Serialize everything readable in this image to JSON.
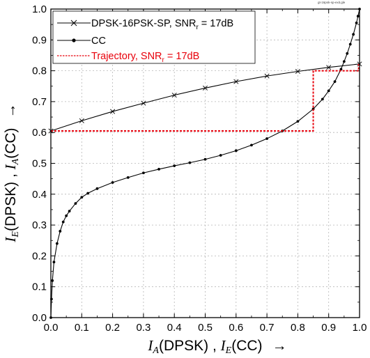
{
  "file_tag": "gt-16psk-sp-exit.gle",
  "chart_data": {
    "type": "line",
    "xlim": [
      0,
      1
    ],
    "ylim": [
      0,
      1
    ],
    "xticks": [
      "0.0",
      "0.1",
      "0.2",
      "0.3",
      "0.4",
      "0.5",
      "0.6",
      "0.7",
      "0.8",
      "0.9",
      "1.0"
    ],
    "yticks": [
      "0.0",
      "0.1",
      "0.2",
      "0.3",
      "0.4",
      "0.5",
      "0.6",
      "0.7",
      "0.8",
      "0.9",
      "1.0"
    ],
    "xlabel": {
      "i": "I",
      "sub1": "A",
      "t1": "(DPSK) ,  ",
      "i2": "I",
      "sub2": "E",
      "t2": "(CC)",
      "arrow": "→"
    },
    "ylabel": {
      "i": "I",
      "sub1": "E",
      "t1": "(DPSK) ,  ",
      "i2": "I",
      "sub2": "A",
      "t2": "(CC)",
      "arrow": "→"
    },
    "legend": {
      "placement": "top-left",
      "entries": [
        {
          "pre": "DPSK-16PSK-SP, SNR",
          "sub": "r",
          "post": " = 17dB",
          "color": "#000000",
          "style": "solid",
          "marker": "x"
        },
        {
          "pre": "CC",
          "sub": "",
          "post": "",
          "color": "#000000",
          "style": "solid",
          "marker": "dot"
        },
        {
          "pre": "Trajectory, SNR",
          "sub": "r",
          "post": " = 17dB",
          "color": "#e8000b",
          "style": "dashed",
          "marker": "none"
        }
      ]
    },
    "series": [
      {
        "name": "DPSK-16PSK-SP, SNR_r = 17dB",
        "x": [
          0.0,
          0.1,
          0.2,
          0.3,
          0.4,
          0.5,
          0.6,
          0.7,
          0.8,
          0.9,
          1.0
        ],
        "y": [
          0.605,
          0.638,
          0.668,
          0.695,
          0.721,
          0.744,
          0.765,
          0.783,
          0.798,
          0.811,
          0.822
        ]
      },
      {
        "name": "CC",
        "x": [
          0.0,
          0.002,
          0.005,
          0.01,
          0.02,
          0.03,
          0.04,
          0.05,
          0.06,
          0.08,
          0.1,
          0.12,
          0.15,
          0.2,
          0.25,
          0.3,
          0.35,
          0.4,
          0.45,
          0.5,
          0.55,
          0.6,
          0.65,
          0.7,
          0.75,
          0.8,
          0.85,
          0.88,
          0.9,
          0.92,
          0.94,
          0.95,
          0.96,
          0.97,
          0.98,
          0.99,
          0.995,
          1.0
        ],
        "y": [
          0.0,
          0.06,
          0.12,
          0.18,
          0.24,
          0.28,
          0.31,
          0.33,
          0.345,
          0.37,
          0.39,
          0.403,
          0.418,
          0.438,
          0.454,
          0.469,
          0.481,
          0.492,
          0.502,
          0.513,
          0.526,
          0.541,
          0.559,
          0.58,
          0.605,
          0.636,
          0.676,
          0.708,
          0.735,
          0.765,
          0.805,
          0.83,
          0.856,
          0.886,
          0.918,
          0.955,
          0.977,
          1.0
        ]
      },
      {
        "name": "Trajectory, SNR_r = 17dB",
        "x": [
          0.0,
          0.85,
          0.85,
          0.997,
          0.997
        ],
        "y": [
          0.605,
          0.605,
          0.8,
          0.8,
          0.822
        ]
      }
    ]
  }
}
